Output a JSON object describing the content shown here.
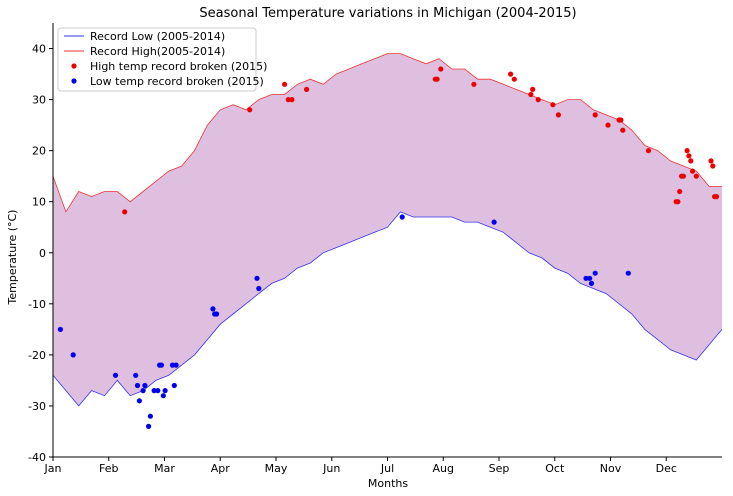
{
  "chart_data": {
    "type": "line",
    "title": "Seasonal Temperature variations in Michigan (2004-2015)",
    "xlabel": "Months",
    "ylabel": "Temperature (°C)",
    "x_ticks": [
      "Jan",
      "Feb",
      "Mar",
      "Apr",
      "May",
      "Jun",
      "Jul",
      "Aug",
      "Sep",
      "Oct",
      "Nov",
      "Dec"
    ],
    "xlim": [
      1,
      365
    ],
    "ylim": [
      -40,
      45
    ],
    "y_ticks": [
      -40,
      -30,
      -20,
      -10,
      0,
      10,
      20,
      30,
      40
    ],
    "grid": false,
    "legend_position": "top-left",
    "fill_between_color": "#dfbfdf",
    "series": [
      {
        "name": "Record Low (2005-2014)",
        "kind": "line",
        "color": "#3333ee",
        "points": [
          [
            1,
            -24
          ],
          [
            8,
            -27
          ],
          [
            15,
            -30
          ],
          [
            22,
            -27
          ],
          [
            29,
            -28
          ],
          [
            36,
            -25
          ],
          [
            43,
            -28
          ],
          [
            50,
            -27
          ],
          [
            57,
            -25
          ],
          [
            64,
            -24
          ],
          [
            71,
            -22
          ],
          [
            78,
            -20
          ],
          [
            85,
            -17
          ],
          [
            92,
            -14
          ],
          [
            99,
            -12
          ],
          [
            106,
            -10
          ],
          [
            113,
            -8
          ],
          [
            120,
            -6
          ],
          [
            127,
            -5
          ],
          [
            134,
            -3
          ],
          [
            141,
            -2
          ],
          [
            148,
            0
          ],
          [
            155,
            1
          ],
          [
            162,
            2
          ],
          [
            169,
            3
          ],
          [
            176,
            4
          ],
          [
            183,
            5
          ],
          [
            190,
            8
          ],
          [
            197,
            7
          ],
          [
            204,
            7
          ],
          [
            211,
            7
          ],
          [
            218,
            7
          ],
          [
            225,
            6
          ],
          [
            232,
            6
          ],
          [
            239,
            5
          ],
          [
            246,
            4
          ],
          [
            253,
            2
          ],
          [
            260,
            0
          ],
          [
            267,
            -1
          ],
          [
            274,
            -3
          ],
          [
            281,
            -4
          ],
          [
            288,
            -6
          ],
          [
            295,
            -7
          ],
          [
            302,
            -8
          ],
          [
            309,
            -10
          ],
          [
            316,
            -12
          ],
          [
            323,
            -15
          ],
          [
            330,
            -17
          ],
          [
            337,
            -19
          ],
          [
            344,
            -20
          ],
          [
            351,
            -21
          ],
          [
            358,
            -18
          ],
          [
            365,
            -15
          ]
        ]
      },
      {
        "name": "Record High(2005-2014)",
        "kind": "line",
        "color": "#ee3333",
        "points": [
          [
            1,
            15
          ],
          [
            8,
            8
          ],
          [
            15,
            12
          ],
          [
            22,
            11
          ],
          [
            29,
            12
          ],
          [
            36,
            12
          ],
          [
            43,
            10
          ],
          [
            50,
            12
          ],
          [
            57,
            14
          ],
          [
            64,
            16
          ],
          [
            71,
            17
          ],
          [
            78,
            20
          ],
          [
            85,
            25
          ],
          [
            92,
            28
          ],
          [
            99,
            29
          ],
          [
            106,
            28
          ],
          [
            113,
            30
          ],
          [
            120,
            31
          ],
          [
            127,
            31
          ],
          [
            134,
            33
          ],
          [
            141,
            34
          ],
          [
            148,
            33
          ],
          [
            155,
            35
          ],
          [
            162,
            36
          ],
          [
            169,
            37
          ],
          [
            176,
            38
          ],
          [
            183,
            39
          ],
          [
            190,
            39
          ],
          [
            197,
            38
          ],
          [
            204,
            37
          ],
          [
            211,
            38
          ],
          [
            218,
            36
          ],
          [
            225,
            36
          ],
          [
            232,
            34
          ],
          [
            239,
            34
          ],
          [
            246,
            33
          ],
          [
            253,
            32
          ],
          [
            260,
            31
          ],
          [
            267,
            30
          ],
          [
            274,
            29
          ],
          [
            281,
            30
          ],
          [
            288,
            30
          ],
          [
            295,
            28
          ],
          [
            302,
            27
          ],
          [
            309,
            26
          ],
          [
            316,
            24
          ],
          [
            323,
            21
          ],
          [
            330,
            20
          ],
          [
            337,
            18
          ],
          [
            344,
            17
          ],
          [
            351,
            16
          ],
          [
            358,
            13
          ],
          [
            365,
            13
          ]
        ]
      },
      {
        "name": "High temp record broken (2015)",
        "kind": "scatter",
        "color": "#ee0000",
        "points": [
          [
            40,
            8
          ],
          [
            108,
            28
          ],
          [
            127,
            33
          ],
          [
            129,
            30
          ],
          [
            131,
            30
          ],
          [
            139,
            32
          ],
          [
            209,
            34
          ],
          [
            210,
            34
          ],
          [
            212,
            36
          ],
          [
            230,
            33
          ],
          [
            250,
            35
          ],
          [
            252,
            34
          ],
          [
            261,
            31
          ],
          [
            262,
            32
          ],
          [
            265,
            30
          ],
          [
            273,
            29
          ],
          [
            276,
            27
          ],
          [
            296,
            27
          ],
          [
            303,
            25
          ],
          [
            309,
            26
          ],
          [
            310,
            26
          ],
          [
            311,
            24
          ],
          [
            325,
            20
          ],
          [
            340,
            10
          ],
          [
            341,
            10
          ],
          [
            342,
            12
          ],
          [
            343,
            15
          ],
          [
            344,
            15
          ],
          [
            346,
            20
          ],
          [
            347,
            19
          ],
          [
            348,
            18
          ],
          [
            349,
            16
          ],
          [
            351,
            15
          ],
          [
            359,
            18
          ],
          [
            360,
            17
          ],
          [
            361,
            11
          ],
          [
            362,
            11
          ]
        ]
      },
      {
        "name": "Low temp record broken (2015)",
        "kind": "scatter",
        "color": "#0000ee",
        "points": [
          [
            5,
            -15
          ],
          [
            12,
            -20
          ],
          [
            35,
            -24
          ],
          [
            46,
            -24
          ],
          [
            47,
            -26
          ],
          [
            48,
            -29
          ],
          [
            50,
            -27
          ],
          [
            51,
            -26
          ],
          [
            53,
            -34
          ],
          [
            54,
            -32
          ],
          [
            56,
            -27
          ],
          [
            58,
            -27
          ],
          [
            59,
            -22
          ],
          [
            60,
            -22
          ],
          [
            61,
            -28
          ],
          [
            62,
            -27
          ],
          [
            66,
            -22
          ],
          [
            67,
            -26
          ],
          [
            68,
            -22
          ],
          [
            88,
            -11
          ],
          [
            89,
            -12
          ],
          [
            90,
            -12
          ],
          [
            112,
            -5
          ],
          [
            113,
            -7
          ],
          [
            191,
            7
          ],
          [
            241,
            6
          ],
          [
            291,
            -5
          ],
          [
            293,
            -5
          ],
          [
            294,
            -6
          ],
          [
            296,
            -4
          ],
          [
            314,
            -4
          ]
        ]
      }
    ]
  }
}
